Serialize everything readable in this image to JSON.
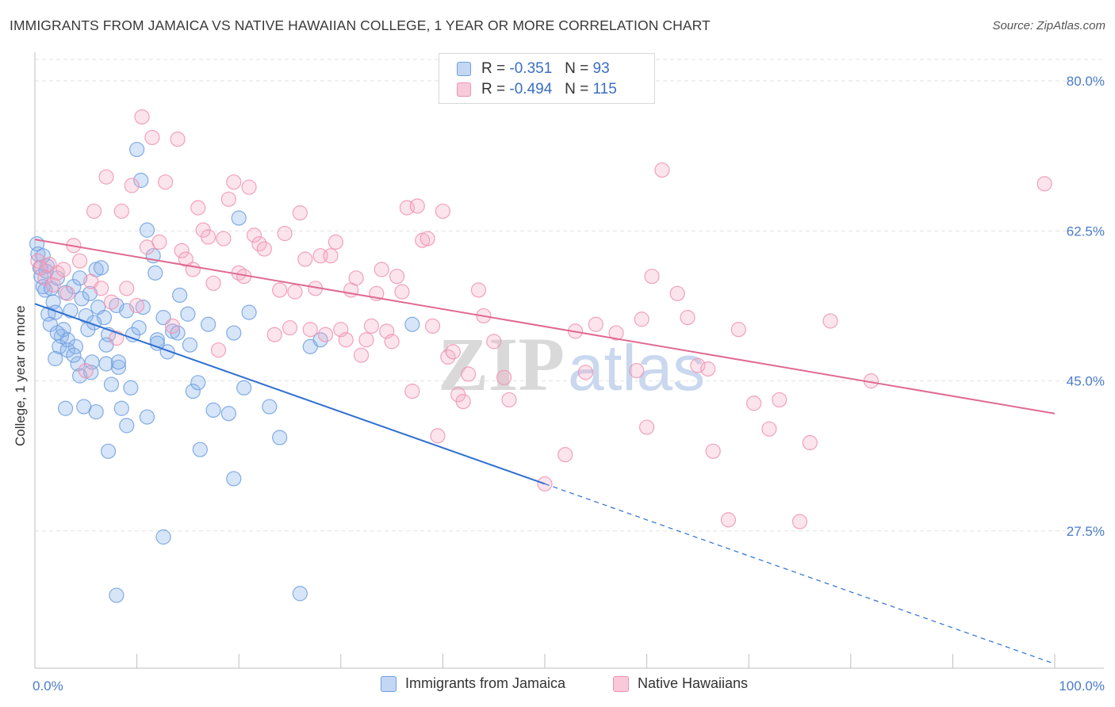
{
  "title": "IMMIGRANTS FROM JAMAICA VS NATIVE HAWAIIAN COLLEGE, 1 YEAR OR MORE CORRELATION CHART",
  "source": "Source: ZipAtlas.com",
  "colors": {
    "blue": "#6f9fe0",
    "blue_line": "#2f6fd0",
    "pink": "#ef93b0",
    "pink_line": "#e06a92",
    "tick": "#4a7cc9"
  },
  "legend": {
    "rows": [
      {
        "r_label": "R =",
        "r_value": "-0.351",
        "n_label": "N =",
        "n_value": "93",
        "color": "blue"
      },
      {
        "r_label": "R =",
        "r_value": "-0.494",
        "n_label": "N =",
        "n_value": "115",
        "color": "pink"
      }
    ]
  },
  "bottom_legend": [
    "Immigrants from Jamaica",
    "Native Hawaiians"
  ],
  "watermark": {
    "zip": "ZIP",
    "atlas": "atlas"
  },
  "chart_data": {
    "type": "scatter",
    "ylabel": "College, 1 year or more",
    "xlim": [
      0,
      100
    ],
    "ylim": [
      11.5,
      82.5
    ],
    "x_tick_labels": [
      {
        "value": 0,
        "label": "0.0%"
      },
      {
        "value": 100,
        "label": "100.0%"
      }
    ],
    "y_ticks": [
      {
        "value": 80.0,
        "label": "80.0%"
      },
      {
        "value": 62.5,
        "label": "62.5%"
      },
      {
        "value": 45.0,
        "label": "45.0%"
      },
      {
        "value": 27.5,
        "label": "27.5%"
      }
    ],
    "grid": true,
    "series": [
      {
        "name": "Immigrants from Jamaica",
        "color": "blue",
        "r": -0.351,
        "n": 93,
        "trend": {
          "x0": 0,
          "y0": 54.0,
          "x1": 50,
          "y1": 33.0,
          "dash_to_x": 100,
          "dash_to_y": 12.0
        },
        "points": [
          [
            0.2,
            61.0
          ],
          [
            0.3,
            59.8
          ],
          [
            0.5,
            58.2
          ],
          [
            0.6,
            57.2
          ],
          [
            0.8,
            56.0
          ],
          [
            1.0,
            55.6
          ],
          [
            1.2,
            58.4
          ],
          [
            1.3,
            52.8
          ],
          [
            1.5,
            51.6
          ],
          [
            1.6,
            55.8
          ],
          [
            1.8,
            54.2
          ],
          [
            2.0,
            53.0
          ],
          [
            2.2,
            57.0
          ],
          [
            2.4,
            49.0
          ],
          [
            2.6,
            50.2
          ],
          [
            2.8,
            51.0
          ],
          [
            3.0,
            55.3
          ],
          [
            3.2,
            49.8
          ],
          [
            3.5,
            53.2
          ],
          [
            3.8,
            56.0
          ],
          [
            4.0,
            49.0
          ],
          [
            4.2,
            47.0
          ],
          [
            4.4,
            57.0
          ],
          [
            4.6,
            54.6
          ],
          [
            5.0,
            52.6
          ],
          [
            5.2,
            51.0
          ],
          [
            5.4,
            55.2
          ],
          [
            5.6,
            47.2
          ],
          [
            6.0,
            58.0
          ],
          [
            6.2,
            53.6
          ],
          [
            6.5,
            58.2
          ],
          [
            6.8,
            52.4
          ],
          [
            7.0,
            47.0
          ],
          [
            7.2,
            50.4
          ],
          [
            7.5,
            44.6
          ],
          [
            8.0,
            53.8
          ],
          [
            8.2,
            46.6
          ],
          [
            8.5,
            41.8
          ],
          [
            9.0,
            39.8
          ],
          [
            9.4,
            44.2
          ],
          [
            9.6,
            50.4
          ],
          [
            10.0,
            72.0
          ],
          [
            10.4,
            68.4
          ],
          [
            10.6,
            53.6
          ],
          [
            11.0,
            62.6
          ],
          [
            11.6,
            59.6
          ],
          [
            11.8,
            57.6
          ],
          [
            12.0,
            49.8
          ],
          [
            12.6,
            52.4
          ],
          [
            13.0,
            48.4
          ],
          [
            13.5,
            50.8
          ],
          [
            14.0,
            50.6
          ],
          [
            14.2,
            55.0
          ],
          [
            15.0,
            52.8
          ],
          [
            15.5,
            43.8
          ],
          [
            16.0,
            44.8
          ],
          [
            17.0,
            51.6
          ],
          [
            17.5,
            41.6
          ],
          [
            19.0,
            41.2
          ],
          [
            19.5,
            50.6
          ],
          [
            20.0,
            64.0
          ],
          [
            20.5,
            44.2
          ],
          [
            21.0,
            53.0
          ],
          [
            23.0,
            42.0
          ],
          [
            24.0,
            38.4
          ],
          [
            27.0,
            49.0
          ],
          [
            28.0,
            49.8
          ],
          [
            12.6,
            26.8
          ],
          [
            8.0,
            20.0
          ],
          [
            16.2,
            37.0
          ],
          [
            19.5,
            33.6
          ],
          [
            26.0,
            20.2
          ],
          [
            37.0,
            51.6
          ],
          [
            7.2,
            36.8
          ],
          [
            3.0,
            41.8
          ],
          [
            4.8,
            42.0
          ],
          [
            6.0,
            41.4
          ],
          [
            8.2,
            47.2
          ],
          [
            10.2,
            51.2
          ],
          [
            11.0,
            40.8
          ],
          [
            2.0,
            47.6
          ],
          [
            3.2,
            48.6
          ],
          [
            4.4,
            45.6
          ],
          [
            5.5,
            46.0
          ],
          [
            7.0,
            49.2
          ],
          [
            9.0,
            53.2
          ],
          [
            12.0,
            49.4
          ],
          [
            15.2,
            49.2
          ],
          [
            0.8,
            59.6
          ],
          [
            1.1,
            57.8
          ],
          [
            2.2,
            50.6
          ],
          [
            3.8,
            48.0
          ],
          [
            5.8,
            51.8
          ]
        ]
      },
      {
        "name": "Native Hawaiians",
        "color": "pink",
        "r": -0.494,
        "n": 115,
        "trend": {
          "x0": 0,
          "y0": 61.5,
          "x1": 100,
          "y1": 41.2
        },
        "points": [
          [
            0.3,
            59.0
          ],
          [
            0.6,
            58.2
          ],
          [
            1.0,
            57.0
          ],
          [
            1.4,
            58.6
          ],
          [
            1.8,
            56.2
          ],
          [
            2.2,
            57.6
          ],
          [
            2.8,
            58.0
          ],
          [
            3.2,
            55.2
          ],
          [
            3.8,
            60.8
          ],
          [
            4.4,
            59.0
          ],
          [
            5.0,
            46.2
          ],
          [
            5.5,
            56.6
          ],
          [
            5.8,
            64.8
          ],
          [
            6.5,
            55.8
          ],
          [
            7.0,
            68.8
          ],
          [
            7.5,
            54.2
          ],
          [
            8.0,
            50.0
          ],
          [
            8.5,
            64.8
          ],
          [
            9.0,
            55.8
          ],
          [
            9.5,
            67.8
          ],
          [
            10.0,
            53.8
          ],
          [
            10.5,
            75.8
          ],
          [
            11.0,
            60.6
          ],
          [
            11.5,
            73.4
          ],
          [
            12.2,
            61.2
          ],
          [
            12.8,
            68.2
          ],
          [
            13.5,
            51.4
          ],
          [
            14.0,
            73.2
          ],
          [
            14.4,
            60.2
          ],
          [
            14.8,
            59.2
          ],
          [
            15.5,
            58.0
          ],
          [
            16.0,
            65.2
          ],
          [
            16.5,
            62.6
          ],
          [
            17.0,
            61.8
          ],
          [
            17.5,
            56.4
          ],
          [
            18.0,
            48.6
          ],
          [
            18.5,
            61.6
          ],
          [
            19.0,
            66.2
          ],
          [
            19.5,
            68.2
          ],
          [
            20.0,
            57.6
          ],
          [
            20.5,
            57.2
          ],
          [
            21.0,
            67.6
          ],
          [
            21.5,
            62.0
          ],
          [
            22.0,
            61.0
          ],
          [
            22.5,
            60.4
          ],
          [
            23.5,
            50.4
          ],
          [
            24.0,
            55.6
          ],
          [
            24.5,
            62.2
          ],
          [
            25.0,
            51.2
          ],
          [
            25.5,
            55.4
          ],
          [
            26.0,
            64.6
          ],
          [
            26.5,
            59.2
          ],
          [
            27.0,
            51.0
          ],
          [
            27.5,
            55.8
          ],
          [
            28.0,
            59.6
          ],
          [
            28.5,
            50.4
          ],
          [
            29.0,
            59.6
          ],
          [
            29.5,
            61.2
          ],
          [
            30.0,
            51.0
          ],
          [
            30.5,
            49.8
          ],
          [
            31.0,
            55.6
          ],
          [
            31.5,
            57.0
          ],
          [
            32.0,
            48.0
          ],
          [
            32.5,
            49.8
          ],
          [
            33.0,
            51.4
          ],
          [
            33.5,
            55.2
          ],
          [
            34.0,
            58.0
          ],
          [
            34.5,
            50.8
          ],
          [
            35.0,
            49.6
          ],
          [
            35.5,
            57.2
          ],
          [
            36.0,
            55.4
          ],
          [
            36.5,
            65.2
          ],
          [
            37.0,
            43.8
          ],
          [
            37.5,
            65.4
          ],
          [
            38.0,
            61.4
          ],
          [
            38.5,
            61.6
          ],
          [
            39.0,
            51.4
          ],
          [
            39.5,
            38.6
          ],
          [
            40.0,
            64.8
          ],
          [
            40.5,
            47.8
          ],
          [
            41.0,
            48.4
          ],
          [
            41.5,
            43.4
          ],
          [
            42.0,
            42.6
          ],
          [
            42.5,
            45.8
          ],
          [
            43.5,
            55.6
          ],
          [
            44.0,
            52.6
          ],
          [
            45.0,
            49.6
          ],
          [
            46.0,
            45.4
          ],
          [
            46.5,
            42.8
          ],
          [
            50.0,
            33.0
          ],
          [
            52.0,
            36.4
          ],
          [
            53.0,
            50.8
          ],
          [
            54.0,
            46.0
          ],
          [
            55.0,
            51.6
          ],
          [
            57.0,
            50.6
          ],
          [
            59.0,
            46.2
          ],
          [
            59.5,
            52.2
          ],
          [
            60.0,
            39.6
          ],
          [
            60.5,
            57.2
          ],
          [
            61.5,
            69.6
          ],
          [
            63.0,
            55.2
          ],
          [
            64.0,
            52.4
          ],
          [
            65.0,
            46.8
          ],
          [
            66.0,
            46.4
          ],
          [
            66.5,
            36.8
          ],
          [
            68.0,
            28.8
          ],
          [
            69.0,
            51.0
          ],
          [
            70.5,
            42.4
          ],
          [
            72.0,
            39.4
          ],
          [
            73.0,
            42.8
          ],
          [
            75.0,
            28.6
          ],
          [
            76.0,
            37.8
          ],
          [
            78.0,
            52.0
          ],
          [
            82.0,
            45.0
          ],
          [
            99.0,
            68.0
          ]
        ]
      }
    ]
  }
}
